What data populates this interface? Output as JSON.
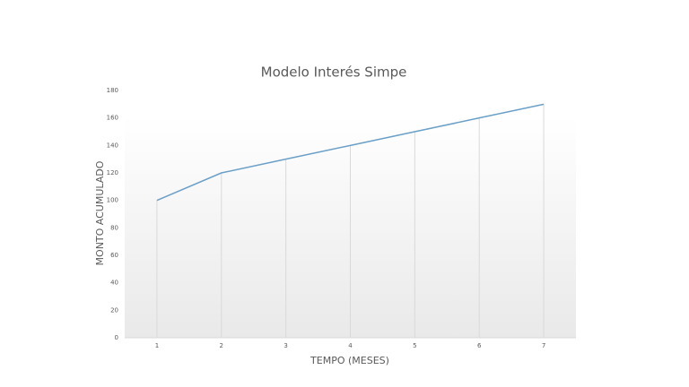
{
  "chart_data": {
    "type": "line",
    "title": "Modelo Interés Simpe",
    "x_label": "TEMPO (MESES)",
    "y_label": "MONTO ACUMULADO",
    "categories": [
      "1",
      "2",
      "3",
      "4",
      "5",
      "6",
      "7"
    ],
    "values": [
      100,
      120,
      130,
      140,
      150,
      160,
      170
    ],
    "color": "#6a9fc8",
    "ylim": [
      0,
      180
    ],
    "yticks": [
      0,
      20,
      40,
      60,
      80,
      100,
      120,
      140,
      160,
      180
    ],
    "drop_lines": true
  }
}
